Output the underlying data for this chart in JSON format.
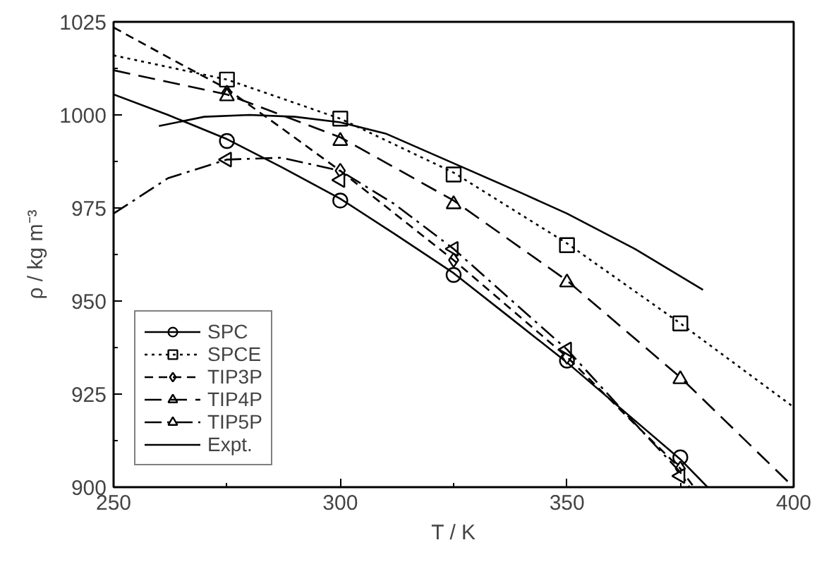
{
  "chart_data": {
    "type": "line",
    "xlabel": "T / K",
    "ylabel": "ρ / kg m⁻³",
    "xlim": [
      250,
      400
    ],
    "ylim": [
      900,
      1025
    ],
    "xticks": [
      250,
      300,
      350,
      400
    ],
    "yticks": [
      900,
      925,
      950,
      975,
      1000,
      1025
    ],
    "grid": false,
    "legend": "bottom left",
    "series": [
      {
        "name": "SPC",
        "type": "scatter",
        "marker": "circle",
        "color": "#000000",
        "x": [
          275,
          300,
          325,
          350,
          375
        ],
        "values": [
          993,
          977,
          957,
          934,
          908
        ]
      },
      {
        "line_style": "solid",
        "color": "#000000",
        "x": [
          250,
          262,
          275,
          287,
          300,
          312,
          325,
          337,
          350,
          362,
          375,
          381
        ],
        "values": [
          1005.5,
          1000,
          993.5,
          986,
          977.5,
          968,
          957.5,
          946,
          933.5,
          921,
          907.5,
          900
        ]
      },
      {
        "name": "SPCE",
        "type": "scatter",
        "marker": "square",
        "color": "#000000",
        "x": [
          275,
          300,
          325,
          350,
          375
        ],
        "values": [
          1009.5,
          999,
          984,
          965,
          944
        ]
      },
      {
        "line_style": "dotted",
        "color": "#000000",
        "x": [
          250,
          275,
          300,
          325,
          350,
          375,
          400
        ],
        "values": [
          1016,
          1009.5,
          999,
          984.5,
          965.5,
          944,
          921.5
        ]
      },
      {
        "name": "TIP3P",
        "type": "scatter",
        "marker": "diamond",
        "color": "#000000",
        "x": [
          275,
          300,
          325,
          350,
          375
        ],
        "values": [
          1006,
          985,
          961,
          935,
          905
        ]
      },
      {
        "line_style": "dashed",
        "color": "#000000",
        "x": [
          250,
          262,
          275,
          287,
          300,
          312,
          325,
          337,
          350,
          362,
          375,
          378
        ],
        "values": [
          1023.5,
          1015.5,
          1007,
          996.5,
          985,
          973.5,
          961,
          948.5,
          935,
          920.5,
          905,
          900
        ]
      },
      {
        "name": "TIP4P",
        "type": "scatter",
        "marker": "triangle",
        "color": "#000000",
        "x": [
          275,
          300,
          325,
          350,
          375
        ],
        "values": [
          1005,
          993,
          976,
          955,
          929
        ]
      },
      {
        "line_style": "longdash",
        "color": "#000000",
        "x": [
          250,
          275,
          300,
          325,
          350,
          375,
          400
        ],
        "values": [
          1012,
          1005.5,
          994,
          977,
          955.5,
          929.5,
          900
        ]
      },
      {
        "name": "TIP5P",
        "type": "scatter",
        "marker": "triangle_left",
        "color": "#000000",
        "x": [
          275,
          300,
          325,
          350,
          375
        ],
        "values": [
          988,
          982.5,
          964,
          937,
          903
        ]
      },
      {
        "line_style": "dashdot",
        "color": "#000000",
        "x": [
          250,
          262,
          275,
          287,
          300,
          312,
          325,
          337,
          350,
          362,
          375,
          377
        ],
        "values": [
          973.5,
          983,
          988,
          988.5,
          985,
          976,
          964,
          951,
          937,
          921,
          904,
          900
        ]
      },
      {
        "name": "Expt.",
        "line_style": "solid",
        "color": "#000000",
        "x": [
          260,
          270,
          280,
          290,
          300,
          310,
          325,
          340,
          350,
          365,
          380
        ],
        "values": [
          997,
          999.5,
          1000,
          999.5,
          998,
          995,
          987,
          979,
          973.5,
          964,
          953
        ]
      }
    ]
  }
}
